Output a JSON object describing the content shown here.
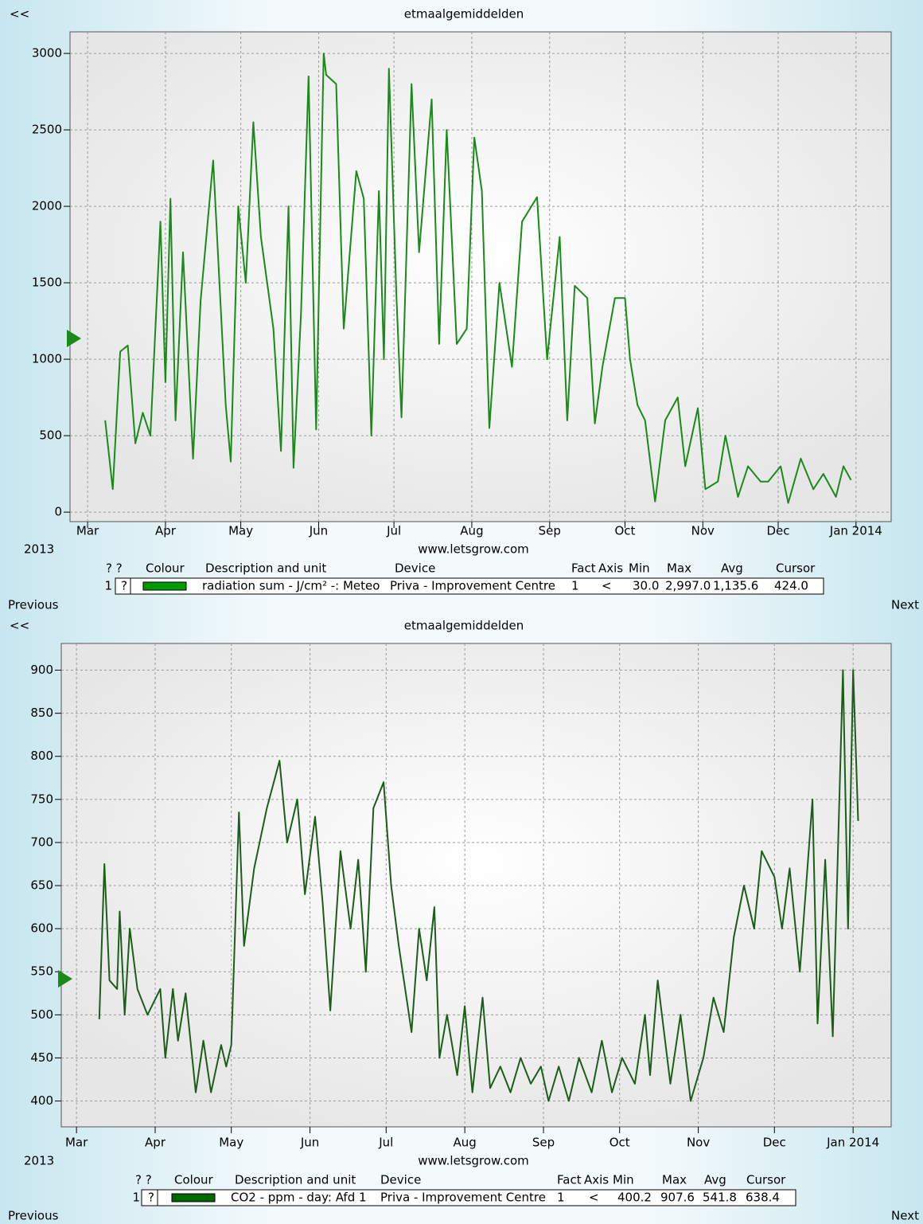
{
  "chart_data": [
    {
      "type": "line",
      "title": "etmaalgemiddelden",
      "nav": {
        "back": "<<",
        "previous": "Previous",
        "next": "Next"
      },
      "year_label": "2013",
      "source": "www.letsgrow.com",
      "color": "#1a8a1a",
      "x": [
        66,
        69,
        72,
        75,
        78,
        81,
        84,
        86,
        88,
        90,
        92,
        94,
        97,
        101,
        104,
        109,
        114,
        116,
        119,
        122,
        125,
        128,
        133,
        136,
        139,
        141,
        144,
        147,
        150,
        153,
        154,
        158,
        161,
        166,
        169,
        172,
        175,
        177,
        179,
        182,
        184,
        188,
        191,
        196,
        199,
        202,
        206,
        210,
        213,
        216,
        219,
        223,
        228,
        232,
        238,
        242,
        247,
        250,
        253,
        258,
        261,
        264,
        269,
        273,
        275,
        278,
        281,
        285,
        289,
        294,
        297,
        302,
        305,
        310,
        313,
        318,
        322,
        327,
        330,
        335,
        338,
        343,
        348,
        352,
        357,
        360,
        363
      ],
      "values": [
        600,
        150,
        1050,
        1090,
        450,
        650,
        500,
        1200,
        1900,
        850,
        2050,
        600,
        1700,
        350,
        1380,
        2300,
        700,
        330,
        2000,
        1500,
        2550,
        1800,
        1200,
        400,
        2000,
        290,
        1300,
        2850,
        540,
        3000,
        2860,
        2800,
        1200,
        2230,
        2050,
        500,
        2100,
        1000,
        2900,
        1400,
        620,
        2800,
        1700,
        2700,
        1100,
        2500,
        1100,
        1200,
        2450,
        2100,
        550,
        1500,
        950,
        1900,
        2060,
        1000,
        1800,
        600,
        1480,
        1400,
        580,
        950,
        1400,
        1400,
        1000,
        700,
        600,
        70,
        600,
        750,
        300,
        680,
        150,
        200,
        500,
        100,
        300,
        200,
        200,
        300,
        60,
        350,
        150,
        250,
        100,
        300,
        210
      ],
      "xlim": [
        52,
        379
      ],
      "xticks": [
        {
          "value": 59,
          "label": "Mar"
        },
        {
          "value": 90,
          "label": "Apr"
        },
        {
          "value": 120,
          "label": "May"
        },
        {
          "value": 151,
          "label": "Jun"
        },
        {
          "value": 181,
          "label": "Jul"
        },
        {
          "value": 212,
          "label": "Aug"
        },
        {
          "value": 243,
          "label": "Sep"
        },
        {
          "value": 273,
          "label": "Oct"
        },
        {
          "value": 304,
          "label": "Nov"
        },
        {
          "value": 334,
          "label": "Dec"
        },
        {
          "value": 365,
          "label": "Jan 2014"
        }
      ],
      "ylim": [
        -62,
        3141
      ],
      "yticks": [
        0,
        500,
        1000,
        1500,
        2000,
        2500,
        3000
      ],
      "grid": true,
      "legend": {
        "headers": [
          "? ?",
          "Colour",
          "Description and unit",
          "Device",
          "Fact",
          "Axis",
          "Min",
          "Max",
          "Avg",
          "Cursor"
        ],
        "index": "1",
        "flag": "?",
        "swatch_color": "#009900",
        "description": "radiation sum - J/cm² -: Meteo",
        "device": "Priva - Improvement Centre",
        "fact": "1",
        "axis": "<",
        "min": {
          "value": 30,
          "label": "30.0"
        },
        "max": {
          "value": 2997,
          "label": "2,997.0"
        },
        "avg": {
          "value": 1135.6,
          "label": "1,135.6"
        },
        "cursor": {
          "value": 424,
          "label": "424.0"
        }
      }
    },
    {
      "type": "line",
      "title": "etmaalgemiddelden",
      "nav": {
        "back": "<<",
        "previous": "Previous",
        "next": "Next"
      },
      "year_label": "2013",
      "source": "www.letsgrow.com",
      "color": "#1a5e1a",
      "x": [
        68,
        70,
        72,
        75,
        76,
        78,
        80,
        83,
        87,
        92,
        94,
        97,
        99,
        102,
        106,
        109,
        112,
        116,
        118,
        120,
        123,
        125,
        129,
        134,
        139,
        142,
        146,
        149,
        153,
        156,
        159,
        163,
        167,
        170,
        173,
        176,
        180,
        183,
        186,
        191,
        194,
        197,
        200,
        202,
        205,
        209,
        212,
        215,
        219,
        222,
        226,
        230,
        234,
        238,
        242,
        245,
        249,
        253,
        257,
        262,
        266,
        270,
        274,
        279,
        283,
        285,
        288,
        293,
        297,
        301,
        306,
        310,
        314,
        318,
        322,
        326,
        329,
        334,
        337,
        340,
        344,
        349,
        351,
        354,
        357,
        361,
        363,
        365,
        367
      ],
      "values": [
        495,
        675,
        540,
        530,
        620,
        500,
        600,
        530,
        500,
        530,
        450,
        530,
        470,
        525,
        410,
        470,
        410,
        465,
        440,
        465,
        735,
        580,
        670,
        740,
        795,
        700,
        750,
        640,
        730,
        630,
        505,
        690,
        600,
        680,
        550,
        740,
        770,
        650,
        580,
        480,
        600,
        540,
        625,
        450,
        500,
        430,
        510,
        410,
        520,
        415,
        440,
        410,
        450,
        420,
        440,
        400,
        440,
        400,
        450,
        410,
        470,
        410,
        450,
        420,
        500,
        430,
        540,
        420,
        500,
        400,
        450,
        520,
        480,
        590,
        650,
        600,
        690,
        660,
        600,
        670,
        550,
        750,
        490,
        680,
        475,
        900,
        600,
        900,
        725
      ],
      "xlim": [
        53,
        380
      ],
      "xticks": [
        {
          "value": 59,
          "label": "Mar"
        },
        {
          "value": 90,
          "label": "Apr"
        },
        {
          "value": 120,
          "label": "May"
        },
        {
          "value": 151,
          "label": "Jun"
        },
        {
          "value": 181,
          "label": "Jul"
        },
        {
          "value": 212,
          "label": "Aug"
        },
        {
          "value": 243,
          "label": "Sep"
        },
        {
          "value": 273,
          "label": "Oct"
        },
        {
          "value": 304,
          "label": "Nov"
        },
        {
          "value": 334,
          "label": "Dec"
        },
        {
          "value": 365,
          "label": "Jan 2014"
        }
      ],
      "ylim": [
        370,
        931
      ],
      "yticks": [
        400,
        450,
        500,
        550,
        600,
        650,
        700,
        750,
        800,
        850,
        900
      ],
      "grid": true,
      "legend": {
        "headers": [
          "? ?",
          "Colour",
          "Description and unit",
          "Device",
          "Fact",
          "Axis",
          "Min",
          "Max",
          "Avg",
          "Cursor"
        ],
        "index": "1",
        "flag": "?",
        "swatch_color": "#006600",
        "description": "CO2 - ppm - day: Afd 1",
        "device": "Priva - Improvement Centre",
        "fact": "1",
        "axis": "<",
        "min": {
          "value": 400.2,
          "label": "400.2"
        },
        "max": {
          "value": 907.6,
          "label": "907.6"
        },
        "avg": {
          "value": 541.8,
          "label": "541.8"
        },
        "cursor": {
          "value": 638.4,
          "label": "638.4"
        }
      }
    }
  ]
}
